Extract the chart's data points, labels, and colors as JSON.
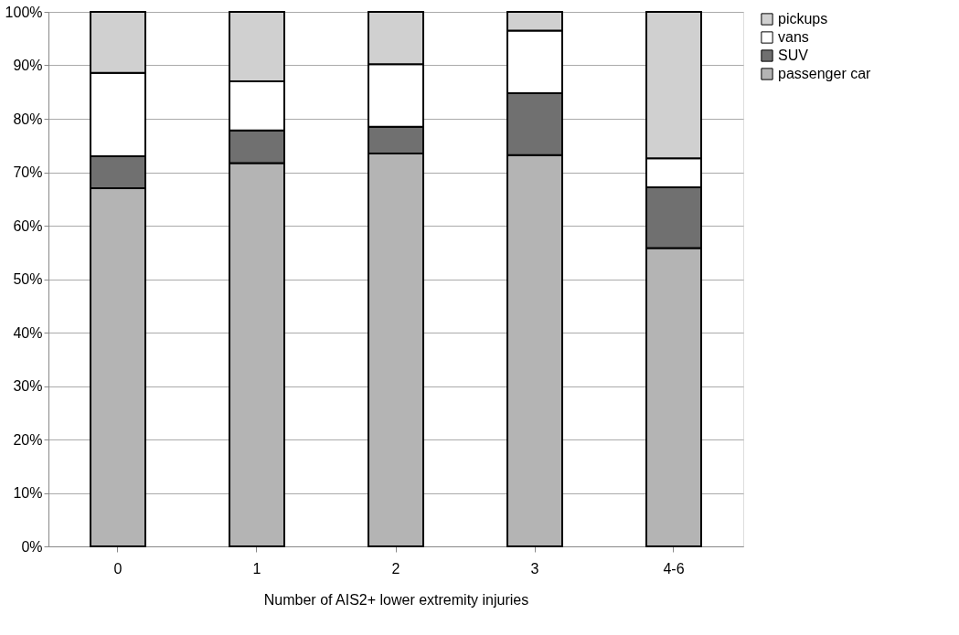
{
  "chart_data": {
    "type": "bar",
    "stacked": true,
    "xlabel": "Number of AIS2+ lower extremity injuries",
    "categories": [
      "0",
      "1",
      "2",
      "3",
      "4-6"
    ],
    "series": [
      {
        "name": "passenger car",
        "color": "#b4b4b4",
        "values": [
          67,
          71.7,
          73.5,
          73.2,
          55.8
        ]
      },
      {
        "name": "SUV",
        "color": "#707070",
        "values": [
          6,
          6.1,
          5,
          11.6,
          11.4
        ]
      },
      {
        "name": "vans",
        "color": "#ffffff",
        "values": [
          15.6,
          9.2,
          11.7,
          11.7,
          5.4
        ]
      },
      {
        "name": "pickups",
        "color": "#d0d0d0",
        "values": [
          11.4,
          13,
          9.8,
          3.5,
          27.4
        ]
      }
    ],
    "ylim": [
      0,
      100
    ],
    "yticks": [
      {
        "value": 0,
        "label": "0%"
      },
      {
        "value": 10,
        "label": "10%"
      },
      {
        "value": 20,
        "label": "20%"
      },
      {
        "value": 30,
        "label": "30%"
      },
      {
        "value": 40,
        "label": "40%"
      },
      {
        "value": 50,
        "label": "50%"
      },
      {
        "value": 60,
        "label": "60%"
      },
      {
        "value": 70,
        "label": "70%"
      },
      {
        "value": 80,
        "label": "80%"
      },
      {
        "value": 90,
        "label": "90%"
      },
      {
        "value": 100,
        "label": "100%"
      }
    ],
    "grid": "y",
    "legend": "right"
  }
}
